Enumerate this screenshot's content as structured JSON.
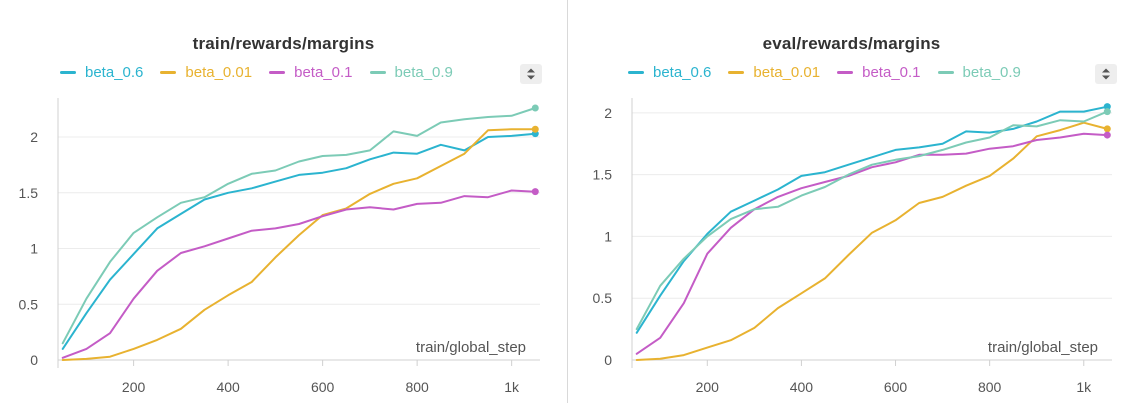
{
  "chart_data": [
    {
      "type": "line",
      "title": "train/rewards/margins",
      "xlabel": "train/global_step",
      "ylabel": "",
      "xlim": [
        40,
        1060
      ],
      "ylim": [
        0,
        2.35
      ],
      "xticks": [
        200,
        400,
        600,
        800,
        1000
      ],
      "xtick_labels": [
        "200",
        "400",
        "600",
        "800",
        "1k"
      ],
      "yticks": [
        0,
        0.5,
        1,
        1.5,
        2
      ],
      "ytick_labels": [
        "0",
        "0.5",
        "1",
        "1.5",
        "2"
      ],
      "grid": true,
      "legend_position": "top-left",
      "x": [
        50,
        100,
        150,
        200,
        250,
        300,
        350,
        400,
        450,
        500,
        550,
        600,
        650,
        700,
        750,
        800,
        850,
        900,
        950,
        1000,
        1050
      ],
      "series": [
        {
          "name": "beta_0.6",
          "color": "#2bb4cf",
          "values": [
            0.1,
            0.42,
            0.72,
            0.95,
            1.18,
            1.31,
            1.44,
            1.5,
            1.54,
            1.6,
            1.66,
            1.68,
            1.72,
            1.8,
            1.86,
            1.85,
            1.93,
            1.88,
            2.0,
            2.01,
            2.03
          ]
        },
        {
          "name": "beta_0.01",
          "color": "#e8b230",
          "values": [
            0.0,
            0.01,
            0.03,
            0.1,
            0.18,
            0.28,
            0.45,
            0.58,
            0.7,
            0.92,
            1.12,
            1.3,
            1.36,
            1.49,
            1.58,
            1.63,
            1.74,
            1.85,
            2.06,
            2.07,
            2.07
          ]
        },
        {
          "name": "beta_0.1",
          "color": "#c45cc6",
          "values": [
            0.02,
            0.1,
            0.24,
            0.55,
            0.8,
            0.96,
            1.02,
            1.09,
            1.16,
            1.18,
            1.22,
            1.29,
            1.35,
            1.37,
            1.35,
            1.4,
            1.41,
            1.47,
            1.46,
            1.52,
            1.51
          ]
        },
        {
          "name": "beta_0.9",
          "color": "#7ccbb6",
          "values": [
            0.15,
            0.55,
            0.88,
            1.14,
            1.28,
            1.41,
            1.46,
            1.58,
            1.67,
            1.7,
            1.78,
            1.83,
            1.84,
            1.88,
            2.05,
            2.01,
            2.13,
            2.16,
            2.18,
            2.19,
            2.26
          ]
        }
      ]
    },
    {
      "type": "line",
      "title": "eval/rewards/margins",
      "xlabel": "train/global_step",
      "ylabel": "",
      "xlim": [
        40,
        1060
      ],
      "ylim": [
        0,
        2.12
      ],
      "xticks": [
        200,
        400,
        600,
        800,
        1000
      ],
      "xtick_labels": [
        "200",
        "400",
        "600",
        "800",
        "1k"
      ],
      "yticks": [
        0,
        0.5,
        1,
        1.5,
        2
      ],
      "ytick_labels": [
        "0",
        "0.5",
        "1",
        "1.5",
        "2"
      ],
      "grid": true,
      "legend_position": "top-left",
      "x": [
        50,
        100,
        150,
        200,
        250,
        300,
        350,
        400,
        450,
        500,
        550,
        600,
        650,
        700,
        750,
        800,
        850,
        900,
        950,
        1000,
        1050
      ],
      "series": [
        {
          "name": "beta_0.6",
          "color": "#2bb4cf",
          "values": [
            0.22,
            0.52,
            0.8,
            1.02,
            1.2,
            1.29,
            1.38,
            1.49,
            1.52,
            1.58,
            1.64,
            1.7,
            1.72,
            1.75,
            1.85,
            1.84,
            1.87,
            1.93,
            2.01,
            2.01,
            2.05
          ]
        },
        {
          "name": "beta_0.01",
          "color": "#e8b230",
          "values": [
            0.0,
            0.01,
            0.04,
            0.1,
            0.16,
            0.26,
            0.42,
            0.54,
            0.66,
            0.85,
            1.03,
            1.13,
            1.27,
            1.32,
            1.41,
            1.49,
            1.63,
            1.81,
            1.86,
            1.92,
            1.87
          ]
        },
        {
          "name": "beta_0.1",
          "color": "#c45cc6",
          "values": [
            0.05,
            0.18,
            0.46,
            0.86,
            1.07,
            1.22,
            1.32,
            1.39,
            1.44,
            1.49,
            1.56,
            1.6,
            1.66,
            1.66,
            1.67,
            1.71,
            1.73,
            1.78,
            1.8,
            1.83,
            1.82
          ]
        },
        {
          "name": "beta_0.9",
          "color": "#7ccbb6",
          "values": [
            0.25,
            0.6,
            0.82,
            1.0,
            1.14,
            1.22,
            1.24,
            1.33,
            1.4,
            1.5,
            1.58,
            1.62,
            1.65,
            1.7,
            1.76,
            1.8,
            1.9,
            1.89,
            1.94,
            1.93,
            2.01
          ]
        }
      ]
    }
  ]
}
